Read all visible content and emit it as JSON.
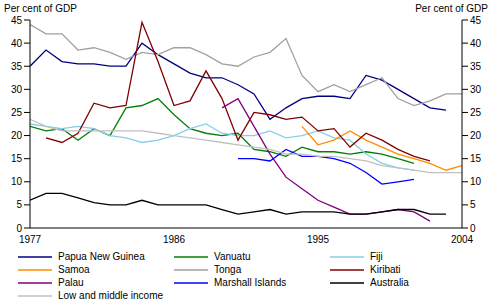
{
  "chart_data": {
    "type": "line",
    "y_label": "Per cent of GDP",
    "y2_label": "Per cent of GDP",
    "x": [
      1977,
      1978,
      1979,
      1980,
      1981,
      1982,
      1983,
      1984,
      1985,
      1986,
      1987,
      1988,
      1989,
      1990,
      1991,
      1992,
      1993,
      1994,
      1995,
      1996,
      1997,
      1998,
      1999,
      2000,
      2001,
      2002,
      2003,
      2004
    ],
    "xlim": [
      1977,
      2004
    ],
    "xticks": [
      1977,
      1986,
      1995,
      2004
    ],
    "ylim": [
      0,
      45
    ],
    "yticks": [
      0,
      5,
      10,
      15,
      20,
      25,
      30,
      35,
      40,
      45
    ],
    "y2lim": [
      0,
      45
    ],
    "y2ticks": [
      0,
      5,
      10,
      15,
      20,
      25,
      30,
      35,
      40,
      45
    ],
    "grid": false,
    "legend": "bottom",
    "series": [
      {
        "name": "Papua New Guinea",
        "color": "#000080",
        "values": [
          35,
          38.5,
          36,
          35.5,
          35.5,
          35,
          35,
          40,
          37.5,
          35.5,
          33.5,
          32.5,
          32.5,
          31,
          29,
          23.5,
          26,
          28,
          28.5,
          28.5,
          28,
          33,
          32,
          30,
          28,
          26,
          25.5,
          null
        ]
      },
      {
        "name": "Vanuatu",
        "color": "#008000",
        "values": [
          22,
          21,
          21.5,
          19,
          21.5,
          20,
          26,
          26.5,
          28,
          24.5,
          21.5,
          20.5,
          20,
          20.5,
          17,
          16.5,
          15.5,
          17.5,
          16.5,
          16.5,
          16,
          16.5,
          16,
          15,
          14,
          null,
          null,
          null
        ]
      },
      {
        "name": "Fiji",
        "color": "#87CEEB",
        "values": [
          22.5,
          22,
          21.5,
          22,
          21.5,
          20,
          19.5,
          18.5,
          19,
          20,
          21.5,
          22.5,
          20.5,
          20,
          20,
          21,
          19.5,
          20,
          21,
          19.5,
          19,
          16,
          14,
          13,
          12.5,
          null,
          null,
          null
        ]
      },
      {
        "name": "Samoa",
        "color": "#FF8C00",
        "values": [
          null,
          null,
          null,
          null,
          null,
          null,
          null,
          null,
          null,
          null,
          null,
          null,
          null,
          null,
          null,
          null,
          null,
          22,
          18,
          19,
          21,
          19,
          17.5,
          16,
          15,
          14,
          12.5,
          13.5
        ]
      },
      {
        "name": "Tonga",
        "color": "#A0A0A0",
        "values": [
          44,
          42,
          42,
          38.5,
          39,
          38,
          36.5,
          38,
          37.5,
          39,
          39,
          37.5,
          35.5,
          35,
          37,
          38,
          41,
          33,
          29.5,
          31,
          29.5,
          31,
          32.5,
          28,
          26.5,
          27.5,
          29,
          29
        ]
      },
      {
        "name": "Kiribati",
        "color": "#800000",
        "values": [
          null,
          19.5,
          18.5,
          20.5,
          27,
          26,
          26.5,
          44.5,
          36,
          26.5,
          27.5,
          34,
          28,
          19,
          25,
          24.5,
          23.5,
          24,
          21,
          21.5,
          17.5,
          20.5,
          19,
          17,
          15.5,
          14.5,
          null,
          null
        ]
      },
      {
        "name": "Palau",
        "color": "#800080",
        "values": [
          null,
          null,
          null,
          null,
          null,
          null,
          null,
          null,
          null,
          null,
          null,
          null,
          26,
          28,
          22,
          16,
          11,
          8.5,
          6,
          4.5,
          3,
          3,
          3.5,
          4,
          3.5,
          1.5,
          null,
          null
        ]
      },
      {
        "name": "Marshall Islands",
        "color": "#0000FF",
        "values": [
          null,
          null,
          null,
          null,
          null,
          null,
          null,
          null,
          null,
          null,
          null,
          null,
          null,
          15,
          15,
          14.5,
          17,
          15.5,
          15.5,
          15,
          14,
          12,
          9.5,
          10,
          10.5,
          null,
          null,
          null
        ]
      },
      {
        "name": "Australia",
        "color": "#000000",
        "values": [
          6,
          7.5,
          7.5,
          6.5,
          5.5,
          5,
          5,
          6,
          5,
          5,
          5,
          5,
          4,
          3,
          3.5,
          4,
          3,
          3.5,
          3.5,
          3.5,
          3,
          3,
          3.5,
          4,
          4,
          3,
          3,
          null
        ]
      },
      {
        "name": "Low and middle income",
        "color": "#C0C0C0",
        "values": [
          23.5,
          22,
          21,
          21,
          21,
          21,
          21,
          21,
          20.5,
          20,
          19.5,
          19,
          18.5,
          18,
          17.5,
          17,
          16,
          16,
          15.5,
          15.5,
          15,
          14.5,
          13.5,
          13,
          12.5,
          12,
          12,
          12
        ]
      }
    ]
  }
}
